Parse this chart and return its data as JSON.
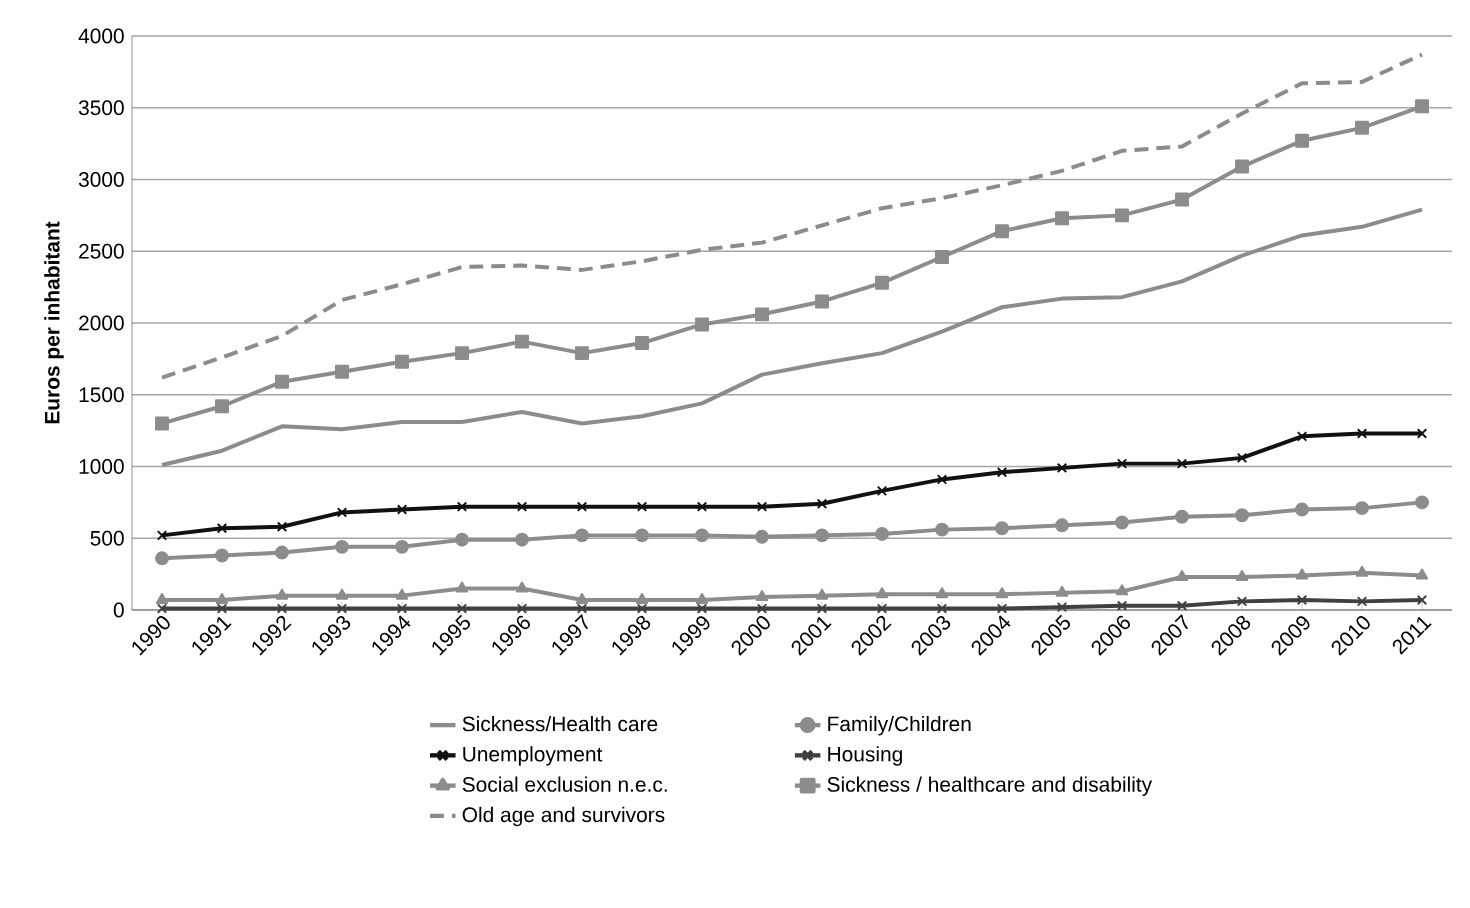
{
  "chart_data": {
    "type": "line",
    "ylabel": "Euros per inhabitant",
    "categories": [
      "1990",
      "1991",
      "1992",
      "1993",
      "1994",
      "1995",
      "1996",
      "1997",
      "1998",
      "1999",
      "2000",
      "2001",
      "2002",
      "2003",
      "2004",
      "2005",
      "2006",
      "2007",
      "2008",
      "2009",
      "2010",
      "2011"
    ],
    "ylim": [
      0,
      4000
    ],
    "yticks": [
      0,
      500,
      1000,
      1500,
      2000,
      2500,
      3000,
      3500,
      4000
    ],
    "grid": "y",
    "legend": "bottom",
    "series": [
      {
        "name": "Sickness/Health care",
        "color": "#8c8c8c",
        "marker": "none",
        "line_style": "solid",
        "values": [
          1010,
          1110,
          1280,
          1260,
          1310,
          1310,
          1380,
          1300,
          1350,
          1440,
          1640,
          1720,
          1790,
          1940,
          2110,
          2170,
          2180,
          2290,
          2470,
          2610,
          2670,
          2790
        ]
      },
      {
        "name": "Family/Children",
        "color": "#8c8c8c",
        "marker": "circle",
        "line_style": "solid",
        "values": [
          360,
          380,
          400,
          440,
          440,
          490,
          490,
          520,
          520,
          520,
          510,
          520,
          530,
          560,
          570,
          590,
          610,
          650,
          660,
          700,
          710,
          750
        ]
      },
      {
        "name": "Unemployment",
        "color": "#111111",
        "marker": "cross",
        "line_style": "solid",
        "values": [
          520,
          570,
          580,
          680,
          700,
          720,
          720,
          720,
          720,
          720,
          720,
          740,
          830,
          910,
          960,
          990,
          1020,
          1020,
          1060,
          1210,
          1230,
          1230
        ]
      },
      {
        "name": "Housing",
        "color": "#404040",
        "marker": "cross",
        "line_style": "solid",
        "values": [
          10,
          10,
          10,
          10,
          10,
          10,
          10,
          10,
          10,
          10,
          10,
          10,
          10,
          10,
          10,
          20,
          30,
          30,
          60,
          70,
          60,
          70
        ]
      },
      {
        "name": "Social exclusion n.e.c.",
        "color": "#8c8c8c",
        "marker": "triangle",
        "line_style": "solid",
        "values": [
          70,
          70,
          100,
          100,
          100,
          150,
          150,
          70,
          70,
          70,
          90,
          100,
          110,
          110,
          110,
          120,
          130,
          230,
          230,
          240,
          260,
          240
        ]
      },
      {
        "name": "Sickness / healthcare and disability",
        "color": "#8c8c8c",
        "marker": "square",
        "line_style": "solid",
        "values": [
          1300,
          1420,
          1590,
          1660,
          1730,
          1790,
          1870,
          1790,
          1860,
          1990,
          2060,
          2150,
          2280,
          2460,
          2640,
          2730,
          2750,
          2860,
          3090,
          3270,
          3360,
          3510
        ]
      },
      {
        "name": "Old age and survivors",
        "color": "#8c8c8c",
        "marker": "none",
        "line_style": "dashed",
        "values": [
          1620,
          1760,
          1910,
          2160,
          2270,
          2390,
          2400,
          2370,
          2430,
          2510,
          2560,
          2680,
          2800,
          2870,
          2960,
          3060,
          3200,
          3230,
          3460,
          3670,
          3680,
          3870
        ]
      }
    ]
  }
}
